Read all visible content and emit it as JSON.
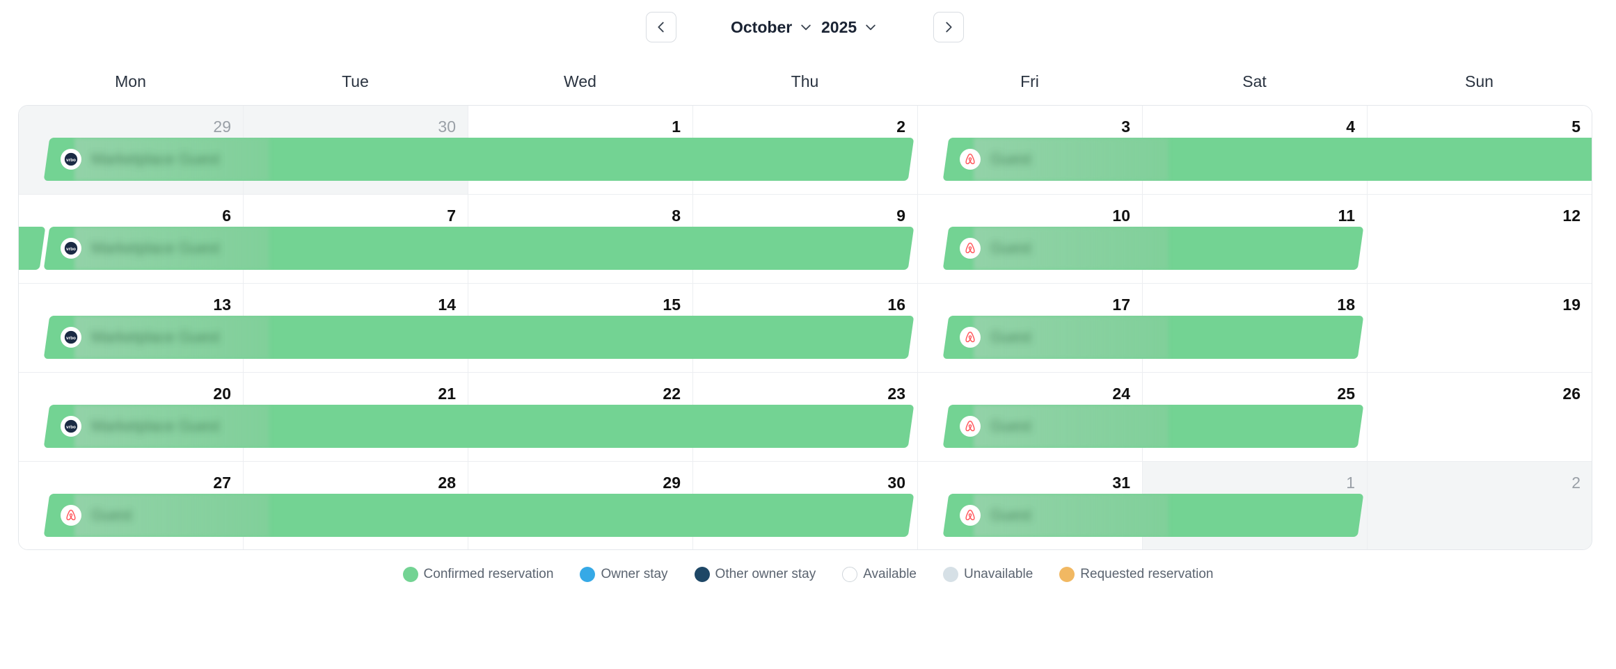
{
  "header": {
    "month": "October",
    "year": "2025",
    "prev_icon": "chevron-left-icon",
    "next_icon": "chevron-right-icon"
  },
  "weekdays": [
    "Mon",
    "Tue",
    "Wed",
    "Thu",
    "Fri",
    "Sat",
    "Sun"
  ],
  "weeks": [
    [
      {
        "d": "29",
        "muted": true
      },
      {
        "d": "30",
        "muted": true
      },
      {
        "d": "1"
      },
      {
        "d": "2"
      },
      {
        "d": "3"
      },
      {
        "d": "4"
      },
      {
        "d": "5"
      }
    ],
    [
      {
        "d": "6"
      },
      {
        "d": "7"
      },
      {
        "d": "8"
      },
      {
        "d": "9"
      },
      {
        "d": "10"
      },
      {
        "d": "11"
      },
      {
        "d": "12"
      }
    ],
    [
      {
        "d": "13"
      },
      {
        "d": "14"
      },
      {
        "d": "15"
      },
      {
        "d": "16"
      },
      {
        "d": "17"
      },
      {
        "d": "18"
      },
      {
        "d": "19"
      }
    ],
    [
      {
        "d": "20"
      },
      {
        "d": "21"
      },
      {
        "d": "22"
      },
      {
        "d": "23"
      },
      {
        "d": "24"
      },
      {
        "d": "25"
      },
      {
        "d": "26"
      }
    ],
    [
      {
        "d": "27"
      },
      {
        "d": "28"
      },
      {
        "d": "29"
      },
      {
        "d": "30"
      },
      {
        "d": "31"
      },
      {
        "d": "1",
        "muted": true
      },
      {
        "d": "2",
        "muted": true
      }
    ]
  ],
  "reservations": [
    {
      "week": 0,
      "start": 0,
      "end": 4,
      "source": "vrbo-icon",
      "guest": "Marketplace Guest"
    },
    {
      "week": 0,
      "start": 4,
      "end": 7,
      "source": "airbnb-icon",
      "guest": "Guest",
      "open_end": true
    },
    {
      "week": 1,
      "start": 0,
      "end": 0,
      "source": "",
      "guest": "",
      "tail": true
    },
    {
      "week": 1,
      "start": 0,
      "end": 4,
      "source": "vrbo-icon",
      "guest": "Marketplace Guest"
    },
    {
      "week": 1,
      "start": 4,
      "end": 6,
      "source": "airbnb-icon",
      "guest": "Guest"
    },
    {
      "week": 2,
      "start": 0,
      "end": 4,
      "source": "vrbo-icon",
      "guest": "Marketplace Guest"
    },
    {
      "week": 2,
      "start": 4,
      "end": 6,
      "source": "airbnb-icon",
      "guest": "Guest"
    },
    {
      "week": 3,
      "start": 0,
      "end": 4,
      "source": "vrbo-icon",
      "guest": "Marketplace Guest"
    },
    {
      "week": 3,
      "start": 4,
      "end": 6,
      "source": "airbnb-icon",
      "guest": "Guest"
    },
    {
      "week": 4,
      "start": 0,
      "end": 4,
      "source": "airbnb-icon",
      "guest": "Guest"
    },
    {
      "week": 4,
      "start": 4,
      "end": 6,
      "source": "airbnb-icon",
      "guest": "Guest"
    }
  ],
  "legend": [
    {
      "label": "Confirmed reservation",
      "color": "#73d393"
    },
    {
      "label": "Owner stay",
      "color": "#36a9e6"
    },
    {
      "label": "Other owner stay",
      "color": "#1e4766"
    },
    {
      "label": "Available",
      "color": "#ffffff",
      "outline": true
    },
    {
      "label": "Unavailable",
      "color": "#d6e0e6"
    },
    {
      "label": "Requested reservation",
      "color": "#f1b862"
    }
  ]
}
